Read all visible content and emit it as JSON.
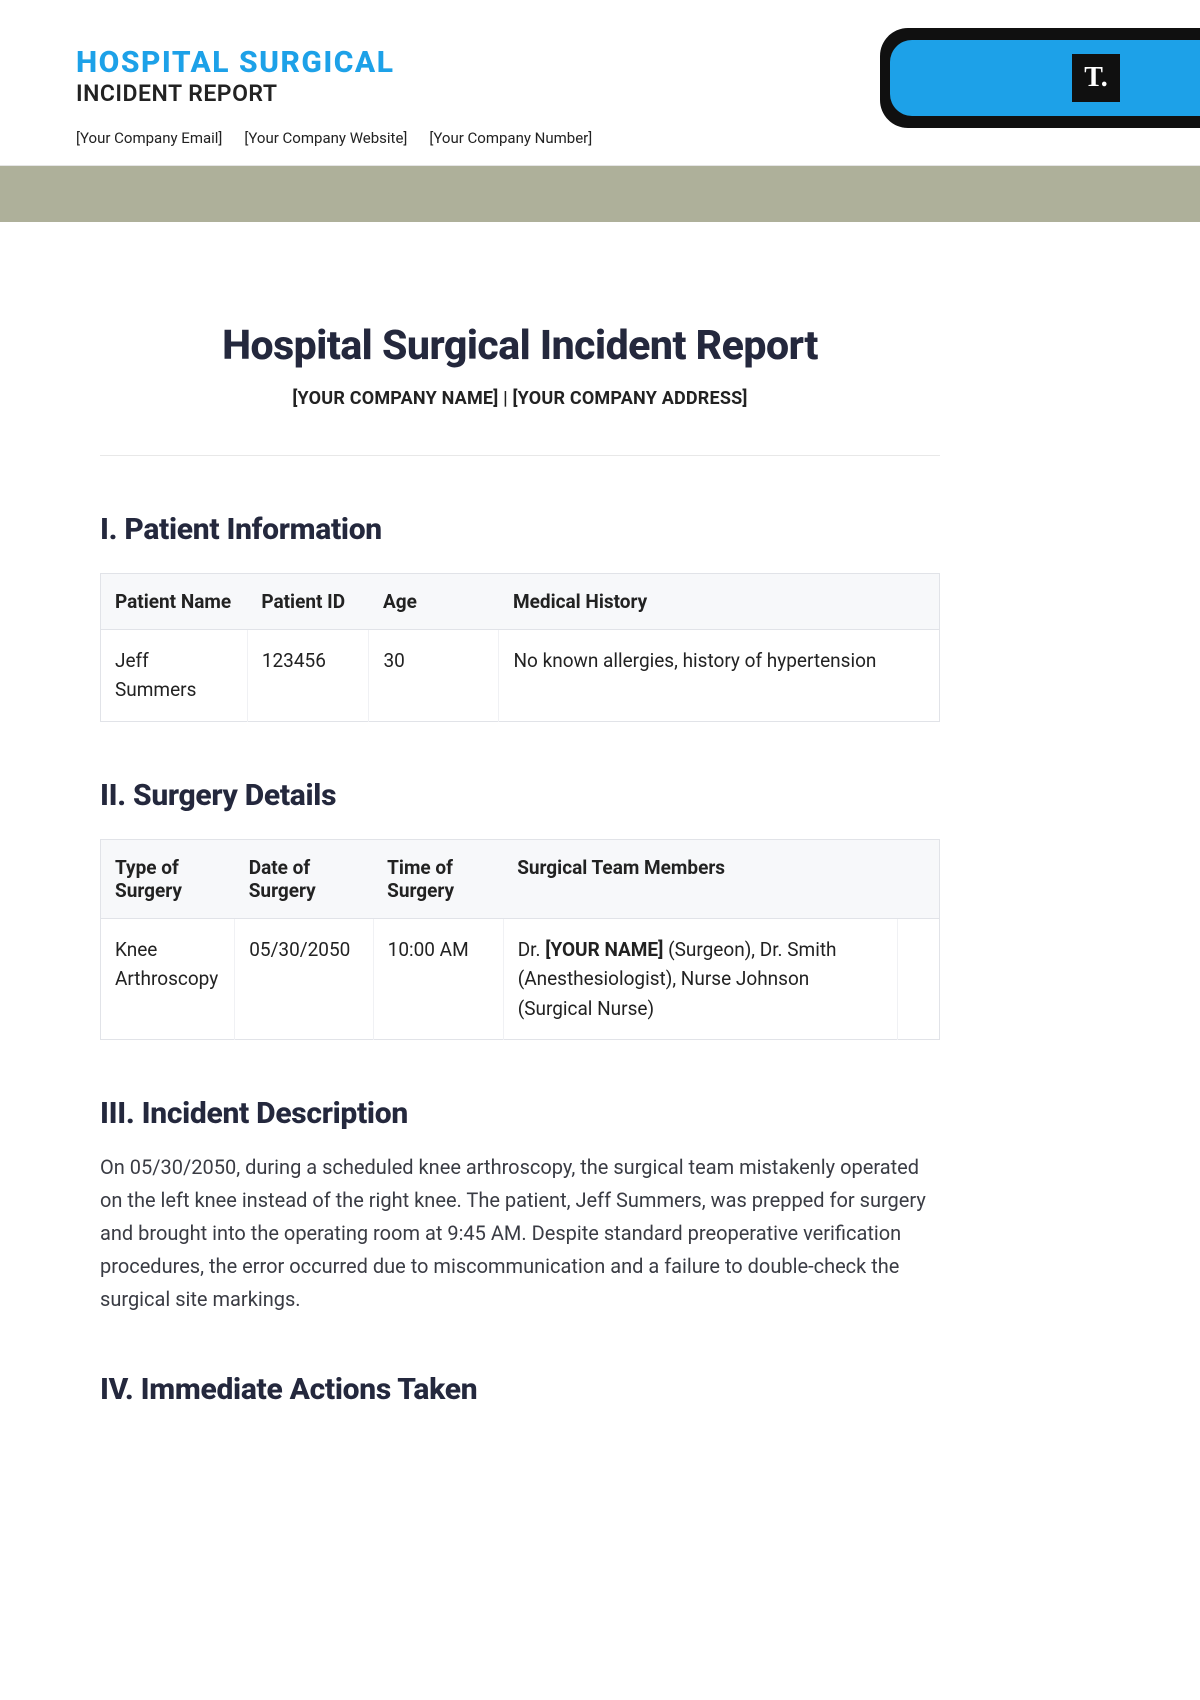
{
  "colors": {
    "accent_blue": "#1da1e8",
    "band": "#aeb09a",
    "heading": "#24283d",
    "logo_black": "#101010",
    "text": "#222222",
    "table_header_bg": "#f7f8fa",
    "table_border": "#e1e3e8",
    "rule": "#e5e5e5"
  },
  "header": {
    "title_line1": "HOSPITAL SURGICAL",
    "title_line2": "INCIDENT REPORT",
    "meta": {
      "email": "[Your Company Email]",
      "website": "[Your Company Website]",
      "number": "[Your Company Number]"
    },
    "logo_letter": "T."
  },
  "doc": {
    "title": "Hospital Surgical Incident Report",
    "subtitle": "[YOUR COMPANY NAME] | [YOUR COMPANY ADDRESS]"
  },
  "s1": {
    "heading": "I. Patient Information",
    "cols": [
      "Patient Name",
      "Patient ID",
      "Age",
      "Medical History"
    ],
    "row": {
      "name": "Jeff Summers",
      "id": "123456",
      "age": "30",
      "history": "No known allergies, history of hypertension"
    }
  },
  "s2": {
    "heading": "II. Surgery Details",
    "cols": [
      "Type of Surgery",
      "Date of Surgery",
      "Time of Surgery",
      "Surgical Team Members",
      ""
    ],
    "row": {
      "type": "Knee Arthroscopy",
      "date": "05/30/2050",
      "time": "10:00 AM",
      "team_pre": "Dr. ",
      "team_bold": "[YOUR NAME]",
      "team_post": " (Surgeon), Dr. Smith (Anesthesiologist), Nurse Johnson (Surgical Nurse)"
    }
  },
  "s3": {
    "heading": "III. Incident Description",
    "body": "On 05/30/2050, during a scheduled knee arthroscopy, the surgical team mistakenly operated on the left knee instead of the right knee. The patient, Jeff Summers, was prepped for surgery and brought into the operating room at 9:45 AM. Despite standard preoperative verification procedures, the error occurred due to miscommunication and a failure to double-check the surgical site markings."
  },
  "s4": {
    "heading": "IV. Immediate Actions Taken"
  }
}
